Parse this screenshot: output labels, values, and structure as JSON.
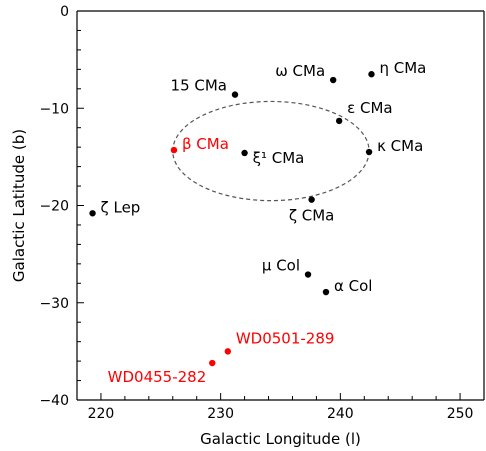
{
  "chart_data": {
    "type": "scatter",
    "xlabel": "Galactic Longitude (l)",
    "ylabel": "Galactic Latitude (b)",
    "xlim": [
      218,
      252
    ],
    "ylim": [
      -40,
      0
    ],
    "x_ticks": [
      220,
      230,
      240,
      250
    ],
    "y_ticks": [
      0,
      -10,
      -20,
      -30,
      -40
    ],
    "x_tick_labels": [
      "220",
      "230",
      "240",
      "250"
    ],
    "y_tick_labels": [
      "0",
      "−10",
      "−20",
      "−30",
      "−40"
    ],
    "grid": false,
    "points": [
      {
        "label": "η CMa",
        "x": 242.6,
        "y": -6.5,
        "color": "#000000",
        "label_side": "right"
      },
      {
        "label": "ω CMa",
        "x": 239.4,
        "y": -7.1,
        "color": "#000000",
        "label_side": "left"
      },
      {
        "label": "15 CMa",
        "x": 231.2,
        "y": -8.6,
        "color": "#000000",
        "label_side": "left"
      },
      {
        "label": "ε CMa",
        "x": 239.9,
        "y": -11.3,
        "color": "#000000",
        "label_side": "right-up"
      },
      {
        "label": "β CMa",
        "x": 226.1,
        "y": -14.3,
        "color": "#ff0000",
        "label_side": "right"
      },
      {
        "label": "ξ¹ CMa",
        "x": 232.0,
        "y": -14.6,
        "color": "#000000",
        "label_side": "right-down"
      },
      {
        "label": "κ CMa",
        "x": 242.4,
        "y": -14.5,
        "color": "#000000",
        "label_side": "right"
      },
      {
        "label": "ζ Lep",
        "x": 219.3,
        "y": -20.8,
        "color": "#000000",
        "label_side": "right"
      },
      {
        "label": "ζ CMa",
        "x": 237.6,
        "y": -19.4,
        "color": "#000000",
        "label_side": "below"
      },
      {
        "label": "μ Col",
        "x": 237.3,
        "y": -27.1,
        "color": "#000000",
        "label_side": "left"
      },
      {
        "label": "α Col",
        "x": 238.8,
        "y": -28.9,
        "color": "#000000",
        "label_side": "right"
      },
      {
        "label": "WD0501-289",
        "x": 230.6,
        "y": -35.0,
        "color": "#ff0000",
        "label_side": "right-up"
      },
      {
        "label": "WD0455-282",
        "x": 229.3,
        "y": -36.2,
        "color": "#ff0000",
        "label_side": "left-down"
      }
    ],
    "ellipse": {
      "cx": 234.2,
      "cy": -14.4,
      "rx": 8.2,
      "ry": 5.1,
      "style": "dashed"
    }
  }
}
